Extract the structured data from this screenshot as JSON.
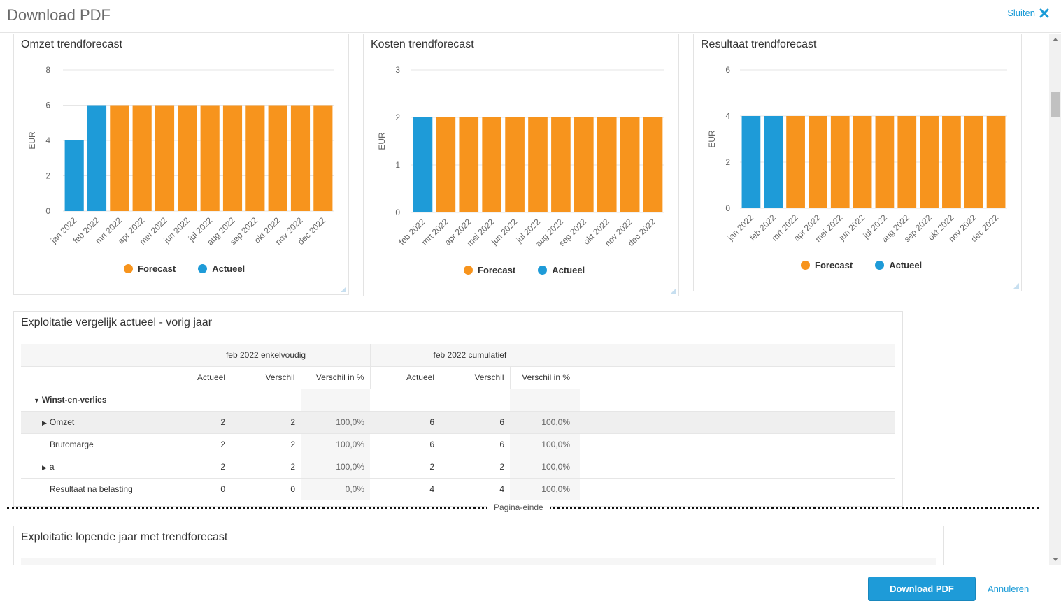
{
  "header": {
    "title": "Download PDF",
    "close_label": "Sluiten"
  },
  "colors": {
    "forecast": "#f7941d",
    "actueel": "#1e9bd8",
    "accent": "#1a9bd7"
  },
  "chart_data": [
    {
      "type": "bar",
      "title": "Omzet trendforecast",
      "ylabel": "EUR",
      "ylim": [
        0,
        8
      ],
      "yticks": [
        0,
        2,
        4,
        6,
        8
      ],
      "categories": [
        "jan 2022",
        "feb 2022",
        "mrt 2022",
        "apr 2022",
        "mei 2022",
        "jun 2022",
        "jul 2022",
        "aug 2022",
        "sep 2022",
        "okt 2022",
        "nov 2022",
        "dec 2022"
      ],
      "values": [
        4,
        6,
        6,
        6,
        6,
        6,
        6,
        6,
        6,
        6,
        6,
        6
      ],
      "series_of_point": [
        "Actueel",
        "Actueel",
        "Forecast",
        "Forecast",
        "Forecast",
        "Forecast",
        "Forecast",
        "Forecast",
        "Forecast",
        "Forecast",
        "Forecast",
        "Forecast"
      ],
      "legend": [
        "Forecast",
        "Actueel"
      ],
      "grid": true
    },
    {
      "type": "bar",
      "title": "Kosten trendforecast",
      "ylabel": "EUR",
      "ylim": [
        0,
        3
      ],
      "yticks": [
        0,
        1,
        2,
        3
      ],
      "categories": [
        "feb 2022",
        "mrt 2022",
        "apr 2022",
        "mei 2022",
        "jun 2022",
        "jul 2022",
        "aug 2022",
        "sep 2022",
        "okt 2022",
        "nov 2022",
        "dec 2022"
      ],
      "values": [
        2,
        2,
        2,
        2,
        2,
        2,
        2,
        2,
        2,
        2,
        2
      ],
      "series_of_point": [
        "Actueel",
        "Forecast",
        "Forecast",
        "Forecast",
        "Forecast",
        "Forecast",
        "Forecast",
        "Forecast",
        "Forecast",
        "Forecast",
        "Forecast"
      ],
      "legend": [
        "Forecast",
        "Actueel"
      ],
      "grid": true
    },
    {
      "type": "bar",
      "title": "Resultaat trendforecast",
      "ylabel": "EUR",
      "ylim": [
        0,
        6
      ],
      "yticks": [
        0,
        2,
        4,
        6
      ],
      "categories": [
        "jan 2022",
        "feb 2022",
        "mrt 2022",
        "apr 2022",
        "mei 2022",
        "jun 2022",
        "jul 2022",
        "aug 2022",
        "sep 2022",
        "okt 2022",
        "nov 2022",
        "dec 2022"
      ],
      "values": [
        4,
        4,
        4,
        4,
        4,
        4,
        4,
        4,
        4,
        4,
        4,
        4
      ],
      "series_of_point": [
        "Actueel",
        "Actueel",
        "Forecast",
        "Forecast",
        "Forecast",
        "Forecast",
        "Forecast",
        "Forecast",
        "Forecast",
        "Forecast",
        "Forecast",
        "Forecast"
      ],
      "legend": [
        "Forecast",
        "Actueel"
      ],
      "grid": true
    }
  ],
  "table1": {
    "title": "Exploitatie vergelijk actueel - vorig jaar",
    "group1": "feb 2022 enkelvoudig",
    "group2": "feb 2022 cumulatief",
    "cols": [
      "Actueel",
      "Verschil",
      "Verschil in %",
      "Actueel",
      "Verschil",
      "Verschil in %"
    ],
    "section": "Winst-en-verlies",
    "rows": [
      {
        "label": "Omzet",
        "expandable": true,
        "cells": [
          "2",
          "2",
          "100,0%",
          "6",
          "6",
          "100,0%"
        ]
      },
      {
        "label": "Brutomarge",
        "expandable": false,
        "cells": [
          "2",
          "2",
          "100,0%",
          "6",
          "6",
          "100,0%"
        ]
      },
      {
        "label": "a",
        "expandable": true,
        "cells": [
          "2",
          "2",
          "100,0%",
          "2",
          "2",
          "100,0%"
        ]
      },
      {
        "label": "Resultaat na belasting",
        "expandable": false,
        "cells": [
          "0",
          "0",
          "0,0%",
          "4",
          "4",
          "100,0%"
        ]
      }
    ]
  },
  "pagebreak_label": "Pagina-einde",
  "table2": {
    "title": "Exploitatie lopende jaar met trendforecast"
  },
  "footer": {
    "download_label": "Download PDF",
    "cancel_label": "Annuleren"
  }
}
